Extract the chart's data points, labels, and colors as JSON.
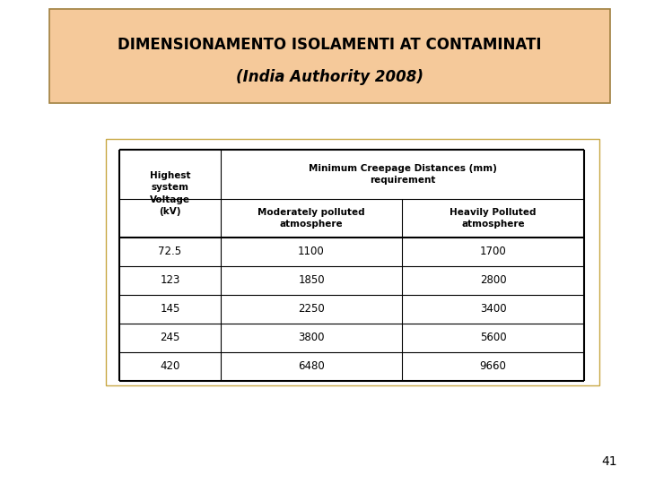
{
  "title_line1": "DIMENSIONAMENTO ISOLAMENTI AT CONTAMINATI",
  "title_line2": "(India Authority 2008)",
  "title_bg_color": "#F5C99A",
  "title_border_color": "#A08040",
  "table_outer_border_color": "#C8A844",
  "page_number": "41",
  "rows": [
    [
      "72.5",
      "1100",
      "1700"
    ],
    [
      "123",
      "1850",
      "2800"
    ],
    [
      "145",
      "2250",
      "3400"
    ],
    [
      "245",
      "3800",
      "5600"
    ],
    [
      "420",
      "6480",
      "9660"
    ]
  ]
}
